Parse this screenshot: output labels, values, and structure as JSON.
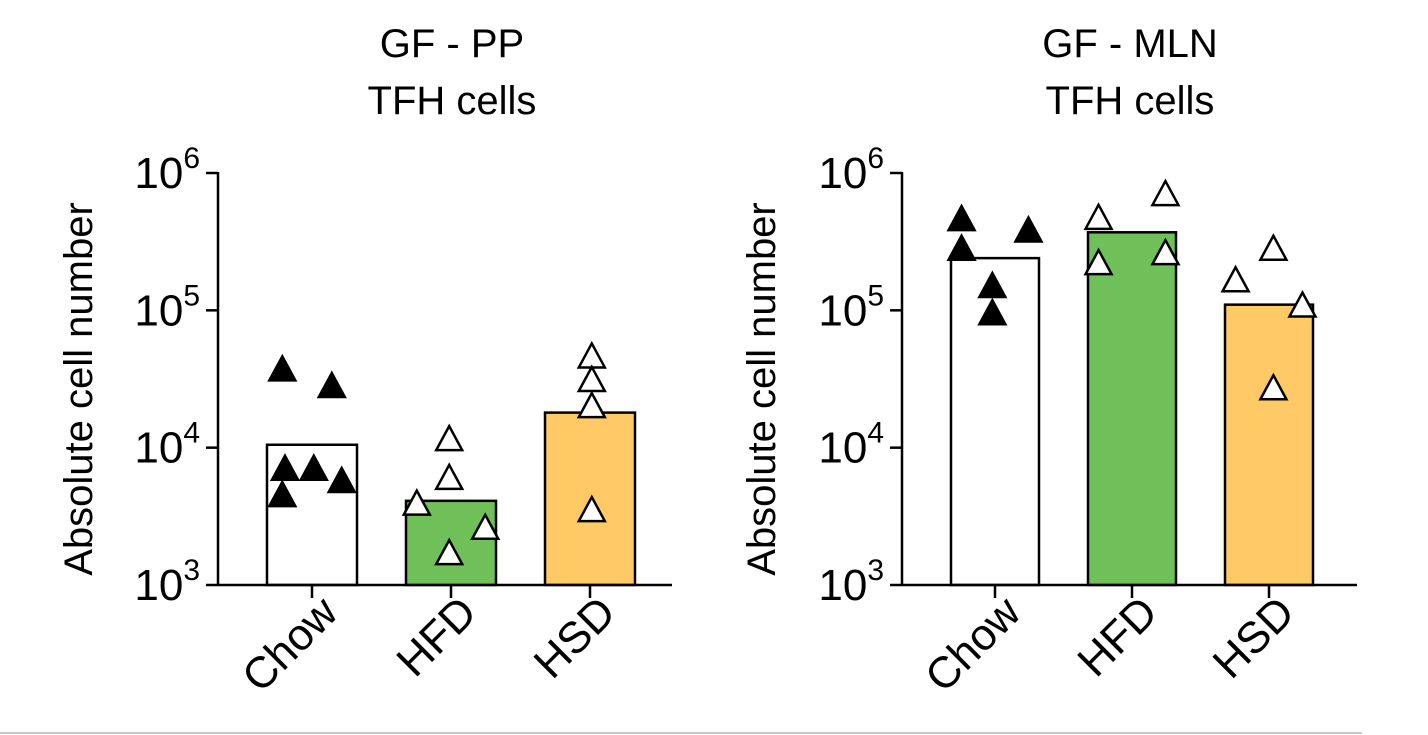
{
  "chart_data": [
    {
      "type": "bar",
      "title": [
        "GF - PP",
        "TFH cells"
      ],
      "ylabel": "Absolute cell number",
      "yscale": "log",
      "ylim": [
        1000,
        1000000
      ],
      "yticks": [
        {
          "base": "10",
          "exp": "3"
        },
        {
          "base": "10",
          "exp": "4"
        },
        {
          "base": "10",
          "exp": "5"
        },
        {
          "base": "10",
          "exp": "6"
        }
      ],
      "categories": [
        "Chow",
        "HFD",
        "HSD"
      ],
      "bars": [
        {
          "name": "Chow",
          "value": 10500,
          "color": "#ffffff",
          "points": [
            {
              "v": 37000,
              "dx": -0.33
            },
            {
              "v": 28000,
              "dx": 0.22
            },
            {
              "v": 7000,
              "dx": -0.3
            },
            {
              "v": 7000,
              "dx": 0.02
            },
            {
              "v": 4500,
              "dx": -0.33
            },
            {
              "v": 5700,
              "dx": 0.33
            }
          ],
          "marker": "filled-triangle"
        },
        {
          "name": "HFD",
          "value": 4100,
          "color": "#70c05a",
          "points": [
            {
              "v": 11500,
              "dx": -0.02
            },
            {
              "v": 6000,
              "dx": -0.02
            },
            {
              "v": 3900,
              "dx": -0.38
            },
            {
              "v": 2600,
              "dx": 0.38
            },
            {
              "v": 1700,
              "dx": -0.02
            }
          ],
          "marker": "open-triangle"
        },
        {
          "name": "HSD",
          "value": 18000,
          "color": "#ffc966",
          "points": [
            {
              "v": 46000,
              "dx": 0.02
            },
            {
              "v": 31000,
              "dx": 0.02
            },
            {
              "v": 20000,
              "dx": 0.02
            },
            {
              "v": 3500,
              "dx": 0.02
            }
          ],
          "marker": "open-triangle"
        }
      ]
    },
    {
      "type": "bar",
      "title": [
        "GF - MLN",
        "TFH cells"
      ],
      "ylabel": "Absolute cell number",
      "yscale": "log",
      "ylim": [
        1000,
        1000000
      ],
      "yticks": [
        {
          "base": "10",
          "exp": "3"
        },
        {
          "base": "10",
          "exp": "4"
        },
        {
          "base": "10",
          "exp": "5"
        },
        {
          "base": "10",
          "exp": "6"
        }
      ],
      "categories": [
        "Chow",
        "HFD",
        "HSD"
      ],
      "bars": [
        {
          "name": "Chow",
          "value": 240000,
          "color": "#ffffff",
          "points": [
            {
              "v": 460000,
              "dx": -0.38
            },
            {
              "v": 380000,
              "dx": 0.38
            },
            {
              "v": 280000,
              "dx": -0.38
            },
            {
              "v": 150000,
              "dx": -0.03
            },
            {
              "v": 95000,
              "dx": -0.03
            }
          ],
          "marker": "filled-triangle"
        },
        {
          "name": "HFD",
          "value": 370000,
          "color": "#70c05a",
          "points": [
            {
              "v": 700000,
              "dx": 0.38
            },
            {
              "v": 470000,
              "dx": -0.38
            },
            {
              "v": 260000,
              "dx": 0.38
            },
            {
              "v": 220000,
              "dx": -0.38
            }
          ],
          "marker": "open-triangle"
        },
        {
          "name": "HSD",
          "value": 110000,
          "color": "#ffc966",
          "points": [
            {
              "v": 280000,
              "dx": 0.05
            },
            {
              "v": 165000,
              "dx": -0.38
            },
            {
              "v": 108000,
              "dx": 0.38
            },
            {
              "v": 27000,
              "dx": 0.05
            }
          ],
          "marker": "open-triangle"
        }
      ]
    }
  ]
}
